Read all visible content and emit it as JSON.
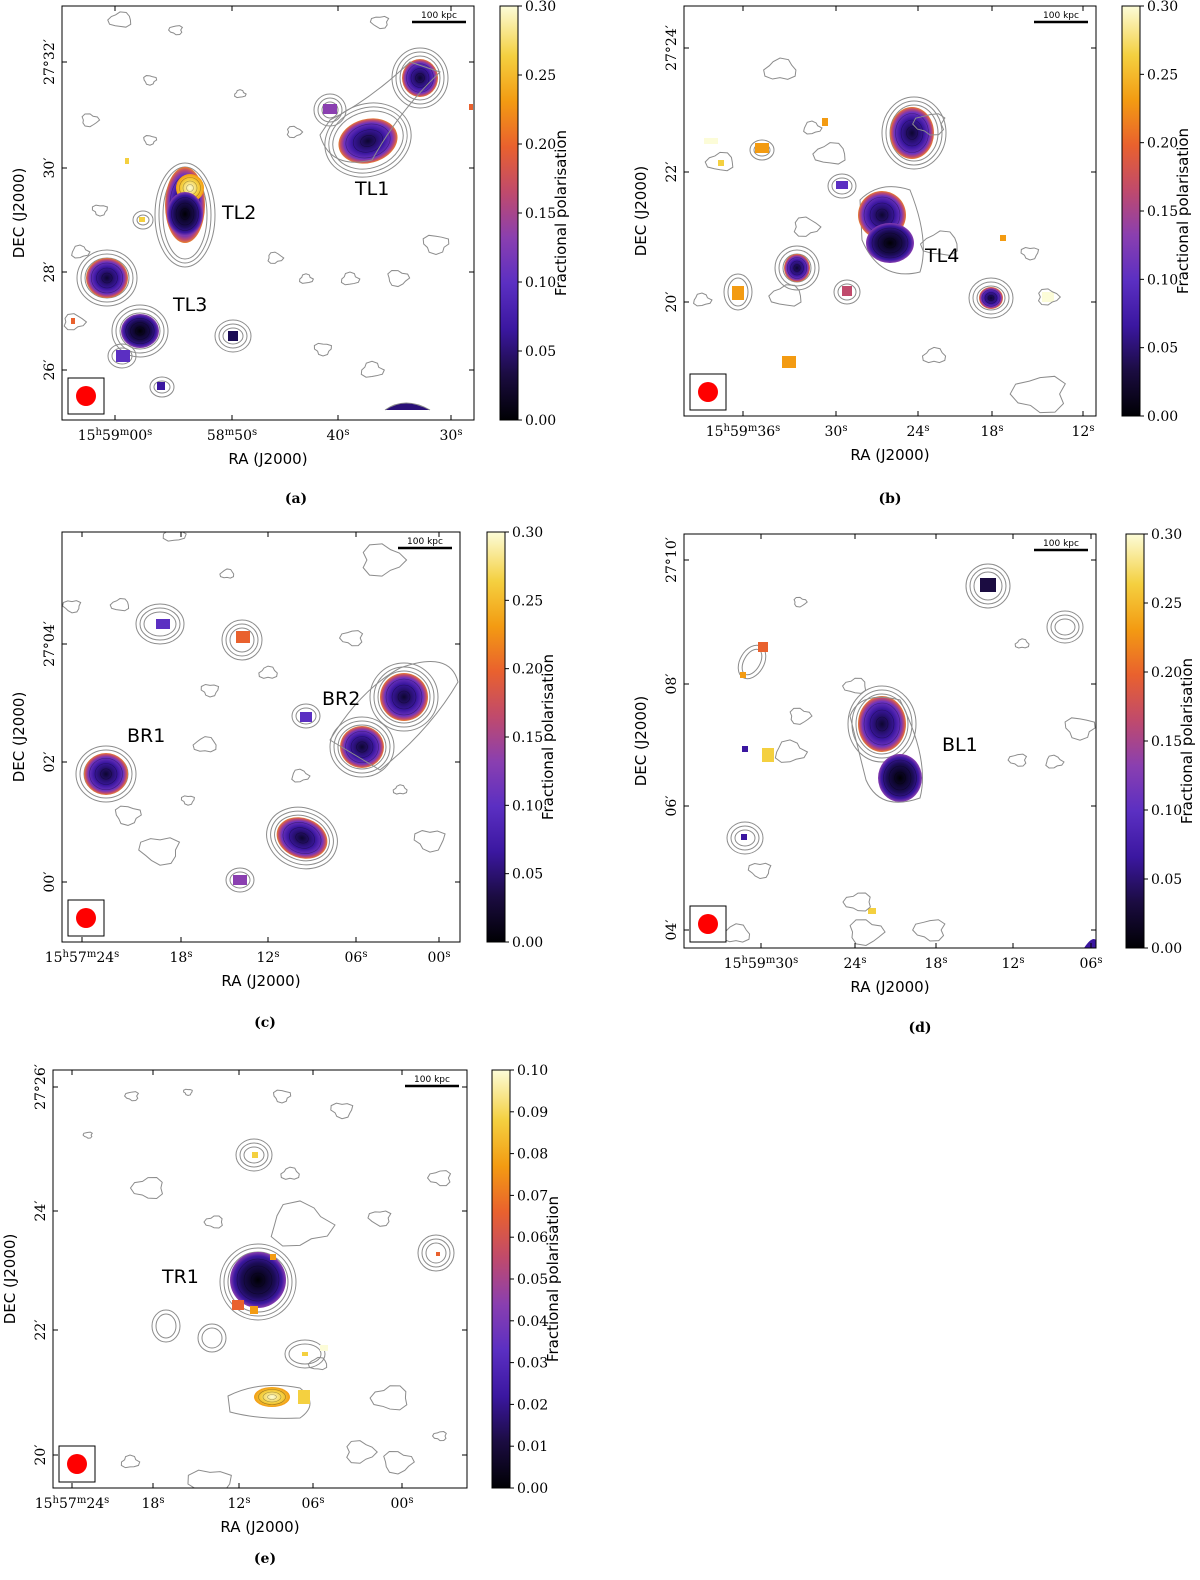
{
  "colors": {
    "contour": "#8c8c8c",
    "beam": "#ff0000",
    "frame": "#000000",
    "colormap": [
      "#000004",
      "#1b0c41",
      "#3b17a0",
      "#5b2fc2",
      "#8a3fb0",
      "#c04a6c",
      "#e9612e",
      "#f39b12",
      "#f4d040",
      "#fcfcd8"
    ]
  },
  "chart_data": [
    {
      "type": "heatmap",
      "panel": "a",
      "caption": "(a)",
      "xlabel": "RA (J2000)",
      "ylabel": "DEC (J2000)",
      "x_ticks": [
        "15h59m00s",
        "58m50s",
        "40s",
        "30s"
      ],
      "y_ticks": [
        "26′",
        "28′",
        "30′",
        "27°32′"
      ],
      "colorbar": {
        "label": "Fractional polarisation",
        "ticks": [
          "0.00",
          "0.05",
          "0.10",
          "0.15",
          "0.20",
          "0.25",
          "0.30"
        ],
        "range": [
          0,
          0.3
        ]
      },
      "scale_bar": "100 kpc",
      "sources": [
        "TL1",
        "TL2",
        "TL3"
      ]
    },
    {
      "type": "heatmap",
      "panel": "b",
      "caption": "(b)",
      "xlabel": "RA (J2000)",
      "ylabel": "DEC (J2000)",
      "x_ticks": [
        "15h59m36s",
        "30s",
        "24s",
        "18s",
        "12s"
      ],
      "y_ticks": [
        "20′",
        "22′",
        "27°24′"
      ],
      "colorbar": {
        "label": "Fractional polarisation",
        "ticks": [
          "0.00",
          "0.05",
          "0.10",
          "0.15",
          "0.20",
          "0.25",
          "0.30"
        ],
        "range": [
          0,
          0.3
        ]
      },
      "scale_bar": "100 kpc",
      "sources": [
        "TL4"
      ]
    },
    {
      "type": "heatmap",
      "panel": "c",
      "caption": "(c)",
      "xlabel": "RA (J2000)",
      "ylabel": "DEC (J2000)",
      "x_ticks": [
        "15h57m24s",
        "18s",
        "12s",
        "06s",
        "00s"
      ],
      "y_ticks": [
        "00′",
        "02′",
        "27°04′"
      ],
      "colorbar": {
        "label": "Fractional polarisation",
        "ticks": [
          "0.00",
          "0.05",
          "0.10",
          "0.15",
          "0.20",
          "0.25",
          "0.30"
        ],
        "range": [
          0,
          0.3
        ]
      },
      "scale_bar": "100 kpc",
      "sources": [
        "BR1",
        "BR2"
      ]
    },
    {
      "type": "heatmap",
      "panel": "d",
      "caption": "(d)",
      "xlabel": "RA (J2000)",
      "ylabel": "DEC (J2000)",
      "x_ticks": [
        "15h59m30s",
        "24s",
        "18s",
        "12s",
        "06s"
      ],
      "y_ticks": [
        "04′",
        "06′",
        "08′",
        "27°10′"
      ],
      "colorbar": {
        "label": "Fractional polarisation",
        "ticks": [
          "0.00",
          "0.05",
          "0.10",
          "0.15",
          "0.20",
          "0.25",
          "0.30"
        ],
        "range": [
          0,
          0.3
        ]
      },
      "scale_bar": "100 kpc",
      "sources": [
        "BL1"
      ]
    },
    {
      "type": "heatmap",
      "panel": "e",
      "caption": "(e)",
      "xlabel": "RA (J2000)",
      "ylabel": "DEC (J2000)",
      "x_ticks": [
        "15h57m24s",
        "18s",
        "12s",
        "06s",
        "00s"
      ],
      "y_ticks": [
        "20′",
        "22′",
        "24′",
        "27°26′"
      ],
      "colorbar": {
        "label": "Fractional polarisation",
        "ticks": [
          "0.00",
          "0.01",
          "0.02",
          "0.03",
          "0.04",
          "0.05",
          "0.06",
          "0.07",
          "0.08",
          "0.09",
          "0.10"
        ],
        "range": [
          0,
          0.1
        ]
      },
      "scale_bar": "100 kpc",
      "sources": [
        "TR1"
      ]
    }
  ]
}
